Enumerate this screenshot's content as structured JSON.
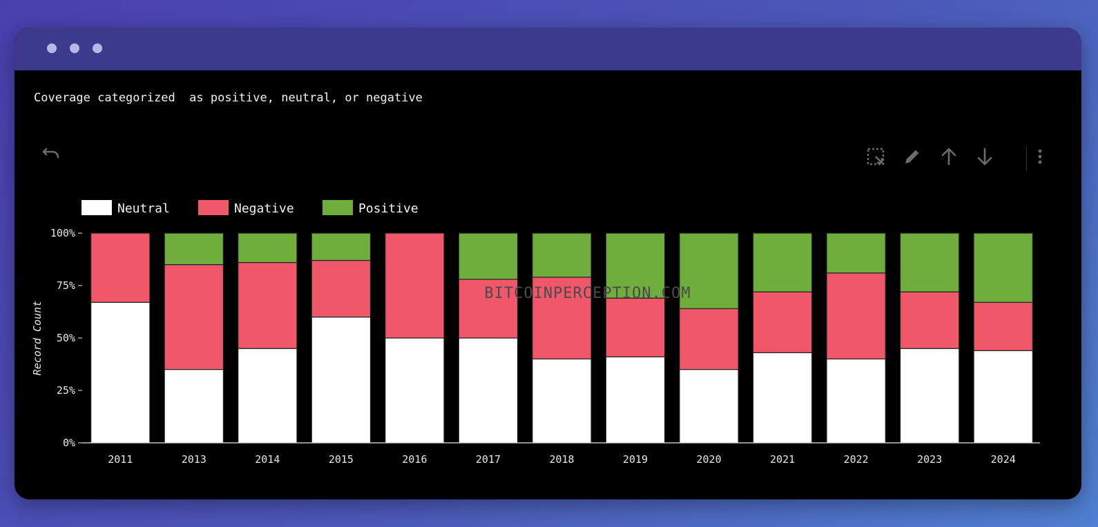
{
  "caption": "Coverage categorized  as positive, neutral, or negative",
  "toolbar": {
    "icons": [
      "undo-icon",
      "select-region-icon",
      "pencil-icon",
      "arrow-up-icon",
      "arrow-down-icon",
      "more-vertical-icon"
    ]
  },
  "watermark": "BITCOINPERCEPTION.COM",
  "colors": {
    "neutral": "#ffffff",
    "negative": "#f0586a",
    "positive": "#6fae3c"
  },
  "chart_data": {
    "type": "bar",
    "stacked": true,
    "normalized": true,
    "categories": [
      "2011",
      "2013",
      "2014",
      "2015",
      "2016",
      "2017",
      "2018",
      "2019",
      "2020",
      "2021",
      "2022",
      "2023",
      "2024"
    ],
    "series": [
      {
        "name": "Neutral",
        "values": [
          67,
          35,
          45,
          60,
          50,
          50,
          40,
          41,
          35,
          43,
          40,
          45,
          44
        ]
      },
      {
        "name": "Negative",
        "values": [
          33,
          50,
          41,
          27,
          50,
          28,
          39,
          28,
          29,
          29,
          41,
          27,
          23
        ]
      },
      {
        "name": "Positive",
        "values": [
          0,
          15,
          14,
          13,
          0,
          22,
          21,
          31,
          36,
          28,
          19,
          28,
          33
        ]
      }
    ],
    "xlabel": "",
    "ylabel": "Record Count",
    "yticks": [
      "0%",
      "25%",
      "50%",
      "75%",
      "100%"
    ],
    "ylim": [
      0,
      100
    ],
    "legend_position": "top-left",
    "grid": false
  }
}
